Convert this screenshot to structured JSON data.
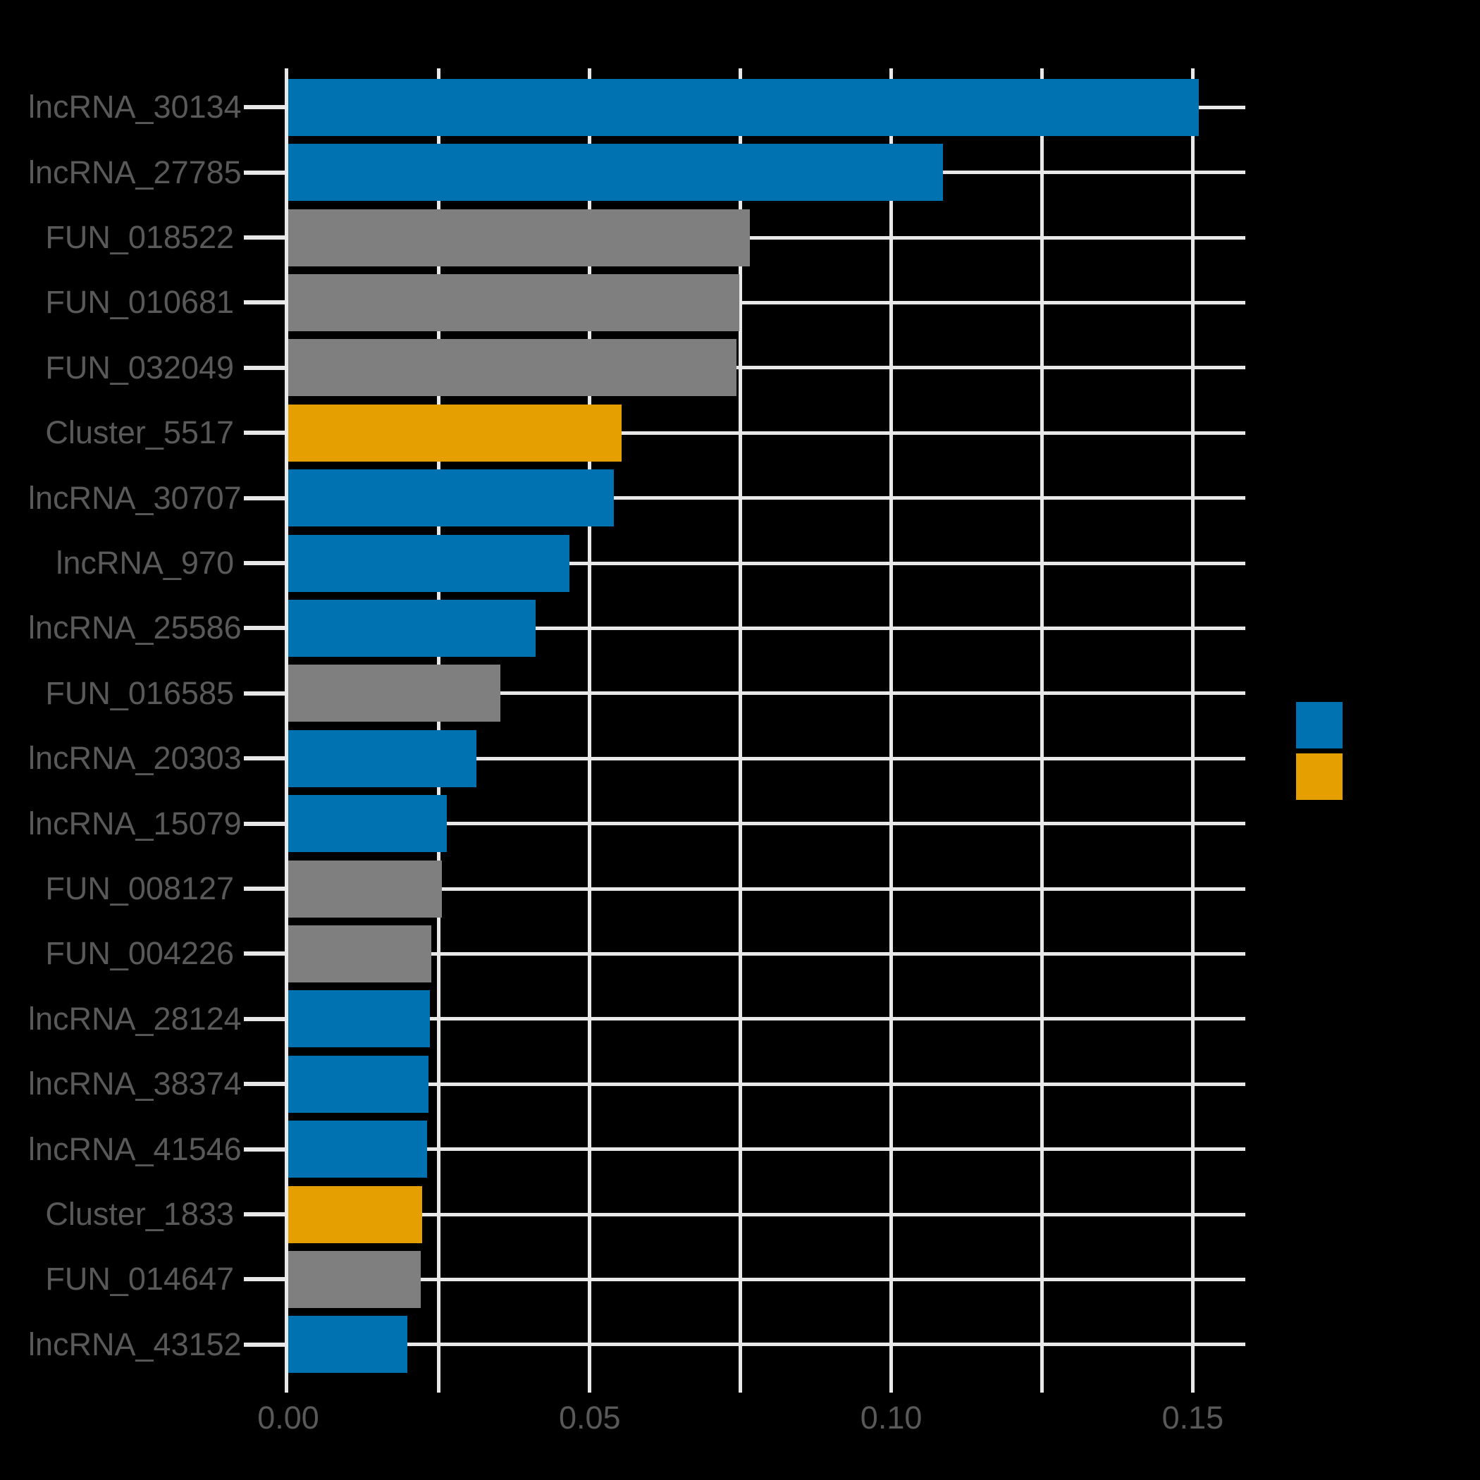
{
  "chart_data": {
    "type": "bar",
    "orientation": "horizontal",
    "title": "",
    "xlabel": "",
    "ylabel": "",
    "categories": [
      "lncRNA_30134",
      "lncRNA_27785",
      "FUN_018522",
      "FUN_010681",
      "FUN_032049",
      "Cluster_5517",
      "lncRNA_30707",
      "lncRNA_970",
      "lncRNA_25586",
      "FUN_016585",
      "lncRNA_20303",
      "lncRNA_15079",
      "FUN_008127",
      "FUN_004226",
      "lncRNA_28124",
      "lncRNA_38374",
      "lncRNA_41546",
      "Cluster_1833",
      "FUN_014647",
      "lncRNA_43152"
    ],
    "values": [
      0.151,
      0.1086,
      0.0766,
      0.0748,
      0.0743,
      0.0553,
      0.054,
      0.0466,
      0.041,
      0.0352,
      0.0312,
      0.0263,
      0.0255,
      0.0237,
      0.0235,
      0.0233,
      0.023,
      0.0222,
      0.022,
      0.0198
    ],
    "groups": [
      "lncRNA",
      "lncRNA",
      "FUN",
      "FUN",
      "FUN",
      "Cluster",
      "lncRNA",
      "lncRNA",
      "lncRNA",
      "FUN",
      "lncRNA",
      "lncRNA",
      "FUN",
      "FUN",
      "lncRNA",
      "lncRNA",
      "lncRNA",
      "Cluster",
      "FUN",
      "lncRNA"
    ],
    "group_colors": {
      "lncRNA": "#0072B2",
      "Cluster": "#E69F00",
      "FUN": "#7F7F7F"
    },
    "xlim": [
      0,
      0.1588
    ],
    "x_tick_values": [
      0,
      0.05,
      0.1,
      0.15
    ],
    "x_tick_labels": [
      "0.00",
      "0.05",
      "0.10",
      "0.15"
    ],
    "x_gridline_values": [
      0,
      0.025,
      0.05,
      0.075,
      0.1,
      0.125,
      0.15
    ],
    "grid": true,
    "background_color": "#000000",
    "gridline_color": "#E8E8E8",
    "axis_text_color": "#595959",
    "legend_position": "right",
    "legend": {
      "items": [
        {
          "color": "#0072B2",
          "label": ""
        },
        {
          "color": "#E69F00",
          "label": ""
        }
      ]
    }
  }
}
